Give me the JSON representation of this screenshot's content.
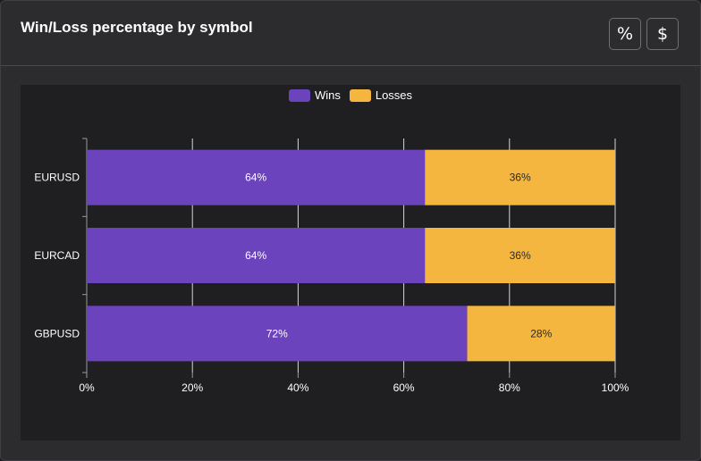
{
  "card": {
    "title": "Win/Loss percentage by symbol"
  },
  "toolbar": {
    "percent_label": "%",
    "dollar_label": "$"
  },
  "colors": {
    "wins": "#6b43bd",
    "losses": "#f4b63f"
  },
  "chart_data": {
    "type": "bar",
    "orientation": "horizontal",
    "stacked": true,
    "categories": [
      "EURUSD",
      "EURCAD",
      "GBPUSD"
    ],
    "series": [
      {
        "name": "Wins",
        "values": [
          64,
          64,
          72
        ],
        "labels": [
          "64%",
          "64%",
          "72%"
        ]
      },
      {
        "name": "Losses",
        "values": [
          36,
          36,
          28
        ],
        "labels": [
          "36%",
          "36%",
          "28%"
        ]
      }
    ],
    "xlim": [
      0,
      100
    ],
    "xticks": [
      "0%",
      "20%",
      "40%",
      "60%",
      "80%",
      "100%"
    ],
    "grid": true,
    "legend_position": "top-center"
  }
}
